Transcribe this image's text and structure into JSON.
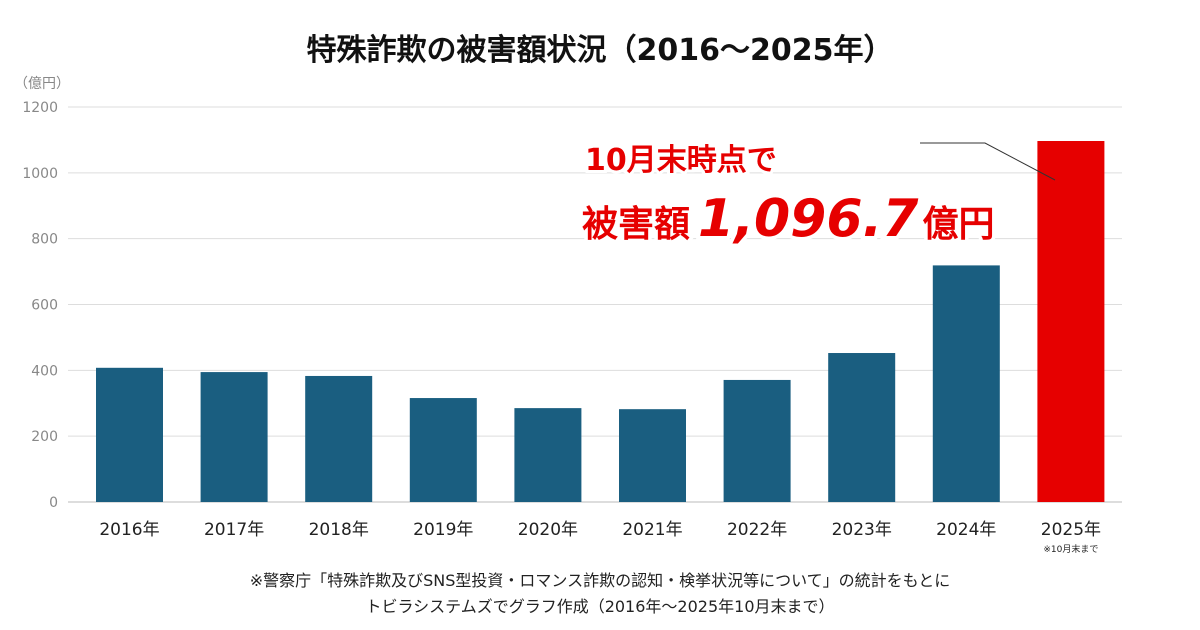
{
  "chart_data": {
    "type": "bar",
    "title": "特殊詐欺の被害額状況（2016〜2025年）",
    "ylabel": "（億円）",
    "ylim": [
      0,
      1200
    ],
    "yticks": [
      "0",
      "200",
      "400",
      "600",
      "800",
      "1000",
      "1200"
    ],
    "grid": true,
    "categories": [
      "2016年",
      "2017年",
      "2018年",
      "2019年",
      "2020年",
      "2021年",
      "2022年",
      "2023年",
      "2024年",
      "2025年"
    ],
    "values": [
      407.7,
      394.7,
      382.9,
      315.8,
      285.2,
      282.0,
      370.8,
      452.6,
      718.8,
      1096.7
    ],
    "category_notes": {
      "2025年": "※10月末まで"
    },
    "colors": {
      "default": "#1a5e80",
      "highlight": "#e60000"
    },
    "highlight_index": 9,
    "annotation": {
      "line1": "10月末時点で",
      "prefix": "被害額",
      "value": "1,096.7",
      "unit": "億円"
    },
    "footnote": [
      "※警察庁「特殊詐欺及びSNS型投資・ロマンス詐欺の認知・検挙状況等について」の統計をもとに",
      "トビラシステムズでグラフ作成（2016年〜2025年10月末まで）"
    ]
  }
}
